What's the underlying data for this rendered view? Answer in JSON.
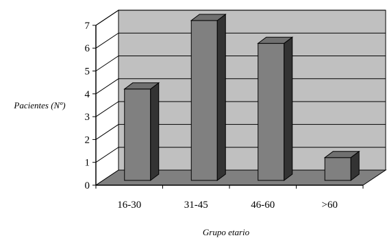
{
  "chart_data": {
    "type": "bar",
    "categories": [
      "16-30",
      "31-45",
      "46-60",
      ">60"
    ],
    "values": [
      4,
      7,
      6,
      1
    ],
    "title": "",
    "xlabel": "Grupo etario",
    "ylabel": "Pacientes (Nº)",
    "ylim": [
      0,
      7
    ],
    "yticks": [
      "0",
      "1",
      "2",
      "3",
      "4",
      "5",
      "6",
      "7"
    ],
    "grid": true,
    "legend": "none",
    "three_d": true,
    "colors": {
      "back_wall": "#c0c0c0",
      "floor": "#808080",
      "bar_front": "#808080",
      "bar_side": "#333333",
      "bar_top": "#707070",
      "outline": "#000000"
    }
  }
}
